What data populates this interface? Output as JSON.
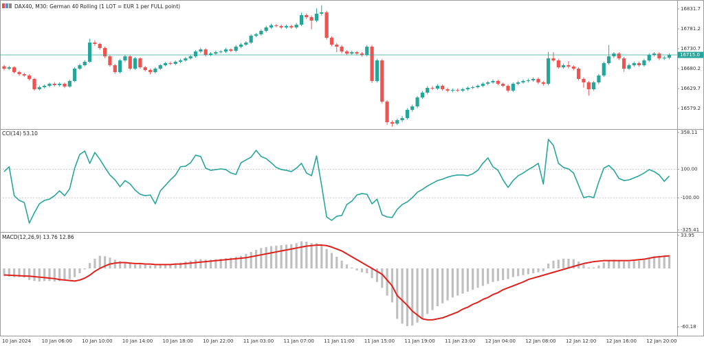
{
  "chart_data": [
    {
      "type": "candlestick",
      "title": "DAX40, M30:  German 40 Rolling (1 LOT = EUR 1 per FULL point)",
      "up_color": "#26a69a",
      "down_color": "#ef5350",
      "categories": [
        "10 Jan 2024",
        null,
        null,
        null,
        null,
        null,
        null,
        null,
        "10 Jan 06:00",
        null,
        null,
        null,
        null,
        null,
        null,
        null,
        "10 Jan 10:00",
        null,
        null,
        null,
        null,
        null,
        null,
        null,
        "10 Jan 14:00",
        null,
        null,
        null,
        null,
        null,
        null,
        null,
        "10 Jan 18:00",
        null,
        null,
        null,
        null,
        null,
        null,
        null,
        "10 Jan 22:00",
        null,
        null,
        null,
        null,
        null,
        null,
        null,
        "11 Jan 03:00",
        null,
        null,
        null,
        null,
        null,
        null,
        null,
        "11 Jan 07:00",
        null,
        null,
        null,
        null,
        null,
        null,
        null,
        "11 Jan 11:00",
        null,
        null,
        null,
        null,
        null,
        null,
        null,
        "11 Jan 15:00",
        null,
        null,
        null,
        null,
        null,
        null,
        null,
        "11 Jan 19:00",
        null,
        null,
        null,
        null,
        null,
        null,
        null,
        "11 Jan 23:00",
        null,
        null,
        null,
        null,
        null,
        null,
        null,
        "12 Jan 04:00",
        null,
        null,
        null,
        null,
        null,
        null,
        null,
        "12 Jan 08:00",
        null,
        null,
        null,
        null,
        null,
        null,
        null,
        "12 Jan 12:00",
        null,
        null,
        null,
        null,
        null,
        null,
        null,
        "12 Jan 16:00",
        null,
        null,
        null,
        null,
        null,
        null,
        null,
        "12 Jan 20:00",
        null,
        null,
        null,
        null
      ],
      "open": [
        16686.0,
        16680.2,
        16683.7,
        16671.5,
        16666.3,
        16662.8,
        16654.1,
        16628.0,
        16633.2,
        16636.7,
        16641.9,
        16638.4,
        16641.9,
        16634.9,
        16648.9,
        16680.2,
        16688.9,
        16697.6,
        16746.4,
        16742.9,
        16732.4,
        16711.5,
        16688.9,
        16671.5,
        16701.1,
        16711.5,
        16680.2,
        16706.3,
        16683.7,
        16676.7,
        16671.5,
        16680.2,
        16688.9,
        16694.1,
        16692.4,
        16697.6,
        16701.1,
        16706.3,
        16711.5,
        16723.7,
        16729.0,
        16715.0,
        16718.5,
        16722.0,
        16723.7,
        16729.0,
        16725.5,
        16736.0,
        16741.1,
        16746.4,
        16763.8,
        16767.3,
        16776.0,
        16784.7,
        16790.0,
        16788.2,
        16784.7,
        16788.2,
        16784.7,
        16791.7,
        16816.0,
        16810.8,
        16802.1,
        16819.5,
        16823.0,
        16758.5,
        16741.1,
        16736.0,
        16723.7,
        16718.5,
        16722.0,
        16718.5,
        16715.0,
        16736.0,
        16648.9,
        16701.1,
        16596.6,
        16544.4,
        16540.9,
        16549.6,
        16554.9,
        16575.7,
        16584.5,
        16607.1,
        16619.3,
        16631.5,
        16629.7,
        16636.7,
        16628.0,
        16624.5,
        16626.2,
        16624.5,
        16628.0,
        16631.5,
        16633.2,
        16636.7,
        16641.9,
        16645.4,
        16648.9,
        16641.9,
        16636.7,
        16624.5,
        16641.9,
        16645.4,
        16648.9,
        16650.6,
        16654.1,
        16645.4,
        16641.9,
        16706.3,
        16701.1,
        16683.7,
        16688.9,
        16685.4,
        16680.2,
        16654.1,
        16645.4,
        16628.0,
        16645.4,
        16662.8,
        16694.1,
        16711.5,
        16718.5,
        16706.3,
        16680.2,
        16688.9,
        16694.1,
        16688.9,
        16701.1,
        16715.0,
        16718.5,
        16706.3,
        16708.0
      ],
      "high": [
        16690.0,
        16687.5,
        16686.0,
        16675.0,
        16670.0,
        16666.0,
        16657.0,
        16637.0,
        16640.0,
        16645.0,
        16646.0,
        16645.5,
        16645.0,
        16652.0,
        16684.0,
        16693.0,
        16702.0,
        16756.0,
        16752.0,
        16746.0,
        16736.0,
        16715.0,
        16692.0,
        16705.0,
        16715.0,
        16714.0,
        16710.0,
        16709.0,
        16687.0,
        16680.0,
        16684.0,
        16692.0,
        16697.0,
        16698.0,
        16701.0,
        16705.0,
        16710.0,
        16715.0,
        16727.0,
        16733.0,
        16732.0,
        16722.0,
        16726.0,
        16727.0,
        16733.0,
        16732.0,
        16740.0,
        16745.0,
        16750.0,
        16767.0,
        16771.0,
        16780.0,
        16789.0,
        16794.0,
        16793.0,
        16792.0,
        16792.0,
        16792.0,
        16796.0,
        16822.0,
        16820.0,
        16815.0,
        16833.0,
        16841.0,
        16827.0,
        16762.0,
        16745.0,
        16740.0,
        16727.0,
        16726.0,
        16725.0,
        16722.0,
        16740.0,
        16740.0,
        16705.0,
        16705.0,
        16600.0,
        16549.0,
        16553.0,
        16560.0,
        16580.0,
        16589.0,
        16611.0,
        16624.0,
        16636.0,
        16636.0,
        16641.0,
        16640.0,
        16632.0,
        16630.0,
        16630.0,
        16632.0,
        16635.0,
        16637.0,
        16640.0,
        16646.0,
        16649.0,
        16653.0,
        16652.0,
        16645.0,
        16640.0,
        16645.0,
        16649.0,
        16653.0,
        16655.0,
        16658.0,
        16658.0,
        16649.0,
        16723.0,
        16722.0,
        16705.0,
        16693.0,
        16699.0,
        16689.0,
        16684.0,
        16658.0,
        16649.0,
        16649.0,
        16667.0,
        16698.0,
        16740.0,
        16722.0,
        16722.0,
        16710.0,
        16693.0,
        16698.0,
        16698.0,
        16705.0,
        16719.0,
        16722.0,
        16722.0,
        16712.0,
        16719.0
      ],
      "low": [
        16676.0,
        16676.5,
        16668.0,
        16662.0,
        16659.5,
        16650.0,
        16624.0,
        16625.0,
        16630.0,
        16633.0,
        16635.0,
        16635.0,
        16631.0,
        16632.0,
        16646.0,
        16677.0,
        16686.0,
        16695.0,
        16738.0,
        16728.0,
        16707.0,
        16685.0,
        16667.0,
        16668.0,
        16697.0,
        16676.0,
        16677.0,
        16680.0,
        16673.0,
        16666.0,
        16668.0,
        16677.0,
        16686.0,
        16689.0,
        16689.0,
        16694.0,
        16698.0,
        16703.0,
        16708.0,
        16720.0,
        16711.0,
        16712.0,
        16715.0,
        16719.0,
        16720.0,
        16722.0,
        16722.0,
        16732.0,
        16738.0,
        16743.0,
        16760.0,
        16764.0,
        16772.0,
        16781.0,
        16785.0,
        16781.0,
        16781.0,
        16781.0,
        16781.0,
        16788.0,
        16806.0,
        16780.0,
        16798.0,
        16815.0,
        16754.0,
        16737.0,
        16722.0,
        16719.0,
        16714.0,
        16715.0,
        16714.0,
        16711.0,
        16711.0,
        16644.0,
        16645.0,
        16592.0,
        16538.0,
        16533.0,
        16537.0,
        16545.0,
        16551.0,
        16571.0,
        16580.0,
        16603.0,
        16615.0,
        16626.0,
        16626.0,
        16624.0,
        16620.0,
        16620.0,
        16621.0,
        16621.0,
        16624.0,
        16628.0,
        16630.0,
        16633.0,
        16638.0,
        16642.0,
        16638.0,
        16633.0,
        16620.0,
        16621.0,
        16638.0,
        16642.0,
        16645.0,
        16647.0,
        16641.0,
        16637.0,
        16638.0,
        16697.0,
        16680.0,
        16680.0,
        16681.0,
        16676.0,
        16650.0,
        16632.0,
        16612.0,
        16624.0,
        16641.0,
        16659.0,
        16690.0,
        16707.0,
        16702.0,
        16672.0,
        16677.0,
        16685.0,
        16685.0,
        16685.0,
        16697.0,
        16711.0,
        16702.0,
        16702.0,
        16704.0
      ],
      "close": [
        16680.2,
        16683.7,
        16671.5,
        16666.3,
        16662.8,
        16654.1,
        16628.0,
        16633.2,
        16636.7,
        16641.9,
        16638.4,
        16641.9,
        16634.9,
        16648.9,
        16680.2,
        16688.9,
        16697.6,
        16746.4,
        16742.9,
        16732.4,
        16711.5,
        16688.9,
        16671.5,
        16701.1,
        16711.5,
        16680.2,
        16706.3,
        16683.7,
        16676.7,
        16671.5,
        16680.2,
        16688.9,
        16694.1,
        16692.4,
        16697.6,
        16701.1,
        16706.3,
        16711.5,
        16723.7,
        16729.0,
        16715.0,
        16718.5,
        16722.0,
        16723.7,
        16729.0,
        16725.5,
        16736.0,
        16741.1,
        16746.4,
        16763.8,
        16767.3,
        16776.0,
        16784.7,
        16790.0,
        16788.2,
        16784.7,
        16788.2,
        16784.7,
        16791.7,
        16816.0,
        16810.8,
        16802.1,
        16819.5,
        16823.0,
        16758.5,
        16741.1,
        16736.0,
        16723.7,
        16718.5,
        16722.0,
        16718.5,
        16715.0,
        16736.0,
        16648.9,
        16701.1,
        16596.6,
        16544.4,
        16540.9,
        16549.6,
        16554.9,
        16575.7,
        16584.5,
        16607.1,
        16619.3,
        16631.5,
        16629.7,
        16636.7,
        16628.0,
        16624.5,
        16626.2,
        16624.5,
        16628.0,
        16631.5,
        16633.2,
        16636.7,
        16641.9,
        16645.4,
        16648.9,
        16641.9,
        16636.7,
        16624.5,
        16641.9,
        16645.4,
        16648.9,
        16650.6,
        16654.1,
        16645.4,
        16641.9,
        16706.3,
        16701.1,
        16683.7,
        16688.9,
        16685.4,
        16680.2,
        16654.1,
        16645.4,
        16628.0,
        16645.4,
        16662.8,
        16694.1,
        16711.5,
        16718.5,
        16706.3,
        16680.2,
        16688.9,
        16694.1,
        16688.9,
        16701.1,
        16715.0,
        16718.5,
        16706.3,
        16708.0,
        16715.0
      ],
      "last_price": {
        "value": 16715.0,
        "label": "16715.0"
      },
      "ylim": [
        16527.0,
        16854.3
      ],
      "yticks": [
        16831.7,
        16781.2,
        16730.7,
        16680.2,
        16629.7,
        16579.2
      ]
    },
    {
      "type": "line",
      "title": "CCI(14) 53.10",
      "color": "#26a69a",
      "values": [
        84,
        118,
        -85,
        -118,
        -133,
        -277,
        -205,
        -142,
        -118,
        -109,
        -85,
        -51,
        -85,
        -37,
        108,
        204,
        228,
        142,
        218,
        170,
        113,
        60,
        26,
        -22,
        21,
        -3,
        -46,
        -75,
        -85,
        -80,
        -142,
        -51,
        -13,
        26,
        60,
        118,
        122,
        146,
        199,
        190,
        108,
        93,
        98,
        103,
        98,
        74,
        64,
        146,
        166,
        185,
        233,
        190,
        175,
        146,
        113,
        98,
        93,
        84,
        108,
        142,
        74,
        55,
        194,
        -13,
        -234,
        -258,
        -229,
        -224,
        -147,
        -123,
        -80,
        -70,
        -75,
        -142,
        -109,
        -219,
        -234,
        -238,
        -181,
        -147,
        -128,
        -99,
        -61,
        -41,
        -17,
        2,
        21,
        31,
        45,
        55,
        60,
        60,
        55,
        69,
        93,
        142,
        180,
        118,
        93,
        26,
        -27,
        21,
        55,
        74,
        98,
        118,
        142,
        -3,
        310,
        267,
        142,
        113,
        103,
        74,
        -13,
        -99,
        -90,
        -99,
        12,
        108,
        127,
        93,
        36,
        21,
        26,
        40,
        55,
        74,
        98,
        84,
        60,
        16,
        53.1
      ],
      "ylim": [
        -325.41,
        358.11
      ],
      "yticks": [
        358.11,
        {
          "value": 100,
          "label": "100.00"
        },
        {
          "value": -100,
          "label": "-100.00"
        },
        -325.41
      ],
      "grid": true
    },
    {
      "type": "combo",
      "title": "MACD(12,26,9) 13.76 12.86",
      "series": [
        {
          "type": "bar",
          "color": "#c0c0c0",
          "values": [
            -8,
            -8.5,
            -9,
            -9,
            -9.5,
            -12,
            -13,
            -13.5,
            -13,
            -13,
            -13.5,
            -13,
            -12.5,
            -11,
            -9,
            -5,
            -1,
            5.5,
            10,
            13,
            12.5,
            11,
            9,
            7.5,
            6.5,
            5,
            4,
            4,
            3.5,
            3,
            3,
            3.5,
            4,
            4.5,
            5,
            6,
            7,
            8,
            9,
            9.5,
            9,
            9,
            9.5,
            10,
            10.5,
            11,
            12,
            13,
            15,
            17,
            19,
            21,
            22,
            23,
            23.5,
            24,
            24.5,
            25,
            26,
            28,
            27.5,
            26,
            26,
            25,
            20,
            16,
            12,
            8,
            4,
            1,
            -2,
            -4,
            -5,
            -10,
            -14,
            -20,
            -28,
            -35,
            -52,
            -57,
            -59.5,
            -59,
            -56,
            -52,
            -47,
            -43,
            -39,
            -36,
            -33,
            -30,
            -28,
            -26,
            -24,
            -22,
            -20,
            -18,
            -16,
            -14,
            -13,
            -12,
            -11,
            -9,
            -8,
            -7,
            -6,
            -5,
            -4,
            -3,
            5,
            8,
            9,
            10,
            10,
            9.5,
            7,
            4,
            1,
            1,
            3,
            6,
            8.5,
            9,
            8.5,
            7,
            7,
            7.5,
            8,
            9,
            11,
            12.5,
            13,
            13.5,
            13.76
          ]
        },
        {
          "type": "line",
          "color": "#e0201b",
          "values": [
            -6.7,
            -7,
            -7.3,
            -7.5,
            -7.8,
            -8,
            -8.5,
            -9,
            -9.5,
            -10,
            -10.5,
            -11.5,
            -12,
            -12.5,
            -13,
            -12,
            -10,
            -7,
            -3,
            0,
            2.5,
            4.5,
            5.5,
            6,
            6,
            5.5,
            5,
            5,
            4.5,
            4.5,
            4,
            4,
            4,
            4,
            4.5,
            4.5,
            5,
            5.5,
            6,
            6.5,
            7,
            7.5,
            8,
            8.5,
            9,
            9.5,
            10,
            10.5,
            11,
            12,
            13,
            14,
            15,
            16,
            17,
            18,
            19,
            20,
            21,
            22,
            23,
            23.5,
            24,
            24,
            23.5,
            22,
            20,
            18,
            15,
            12,
            9,
            6,
            3,
            0,
            -3,
            -6,
            -12,
            -18,
            -28,
            -33,
            -38,
            -44,
            -48,
            -52,
            -53,
            -53,
            -52,
            -51,
            -49,
            -47,
            -45,
            -42,
            -40,
            -37,
            -35,
            -32,
            -30,
            -27,
            -25,
            -22,
            -20,
            -18,
            -16,
            -14,
            -11.5,
            -10,
            -8.5,
            -7,
            -5.5,
            -4,
            -2.5,
            -1,
            0.5,
            2,
            3.5,
            5,
            6,
            7,
            7.5,
            8,
            8,
            8,
            8,
            8,
            8,
            8.5,
            9,
            9.5,
            10.5,
            11.5,
            12,
            12.5,
            12.86
          ]
        }
      ],
      "ylim": [
        -60.18,
        33.95
      ],
      "yticks": [
        33.95,
        -60.18
      ]
    }
  ]
}
